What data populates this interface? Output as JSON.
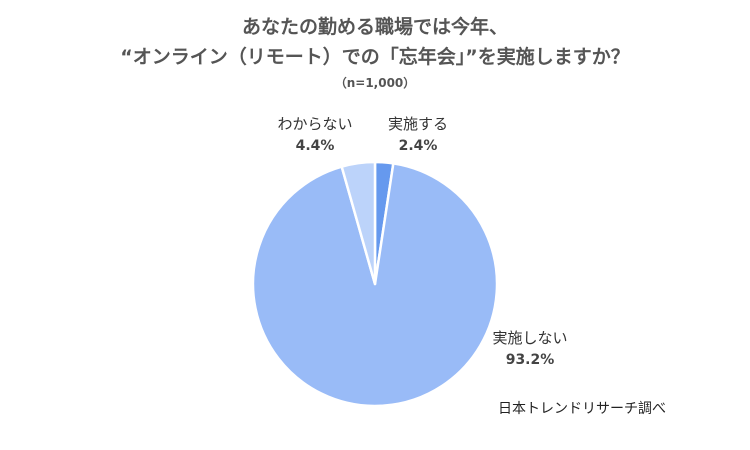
{
  "title_line1": "あなたの勤める職場では今年、",
  "title_line2": "“オンライン（リモート）での「忘年会」”を実施しますか？",
  "sample_size": "（n=1,000）",
  "source": "日本トレンドリサーチ調べ",
  "chart_data": {
    "type": "pie",
    "title": "あなたの勤める職場では今年、“オンライン（リモート）での「忘年会」”を実施しますか？",
    "subtitle": "（n=1,000）",
    "slices": [
      {
        "label": "実施する",
        "value": 2.4,
        "display": "2.4%",
        "color": "#6699ee"
      },
      {
        "label": "実施しない",
        "value": 93.2,
        "display": "93.2%",
        "color": "#99bbf7"
      },
      {
        "label": "わからない",
        "value": 4.4,
        "display": "4.4%",
        "color": "#bcd3fa"
      }
    ],
    "start": "12 o'clock, clockwise",
    "legend": "none"
  }
}
